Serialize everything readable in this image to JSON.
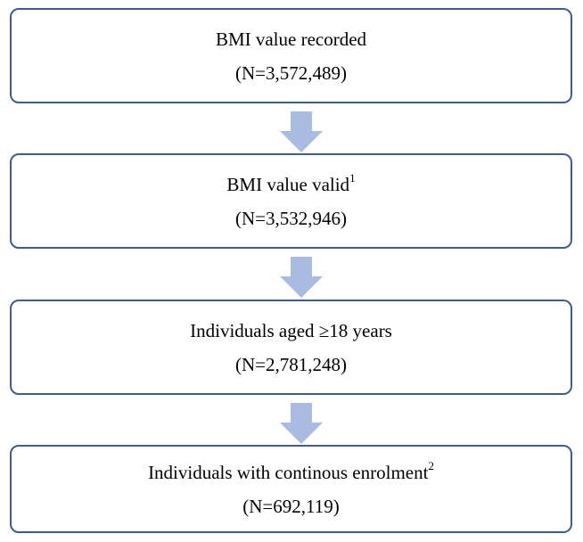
{
  "colors": {
    "box_border": "#3f5d8c",
    "arrow_fill": "#a9bbe0"
  },
  "steps": [
    {
      "label": "BMI value recorded",
      "footnote": "",
      "count": "(N=3,572,489)"
    },
    {
      "label": "BMI value valid",
      "footnote": "1",
      "count": "(N=3,532,946)"
    },
    {
      "label": "Individuals aged ≥18 years",
      "footnote": "",
      "count": "(N=2,781,248)"
    },
    {
      "label": "Individuals with continous enrolment",
      "footnote": "2",
      "count": "(N=692,119)"
    }
  ]
}
